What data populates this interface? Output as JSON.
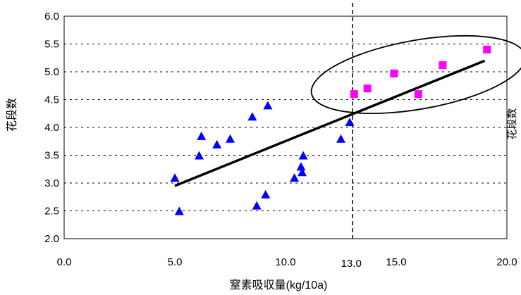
{
  "chart_data": {
    "type": "scatter",
    "title": "",
    "xlabel": "窒素吸収量(kg/10a)",
    "ylabel": "花段数",
    "right_label": "花段数",
    "xlim": [
      0,
      20
    ],
    "ylim": [
      2.0,
      6.0
    ],
    "x_ticks": [
      {
        "value": 0,
        "label": "0.0"
      },
      {
        "value": 5,
        "label": "5.0"
      },
      {
        "value": 10,
        "label": "10.0"
      },
      {
        "value": 15,
        "label": "15.0"
      },
      {
        "value": 20,
        "label": "20.0"
      }
    ],
    "y_ticks": [
      {
        "value": 2.0,
        "label": "2.0"
      },
      {
        "value": 2.5,
        "label": "2.5"
      },
      {
        "value": 3.0,
        "label": "3.0"
      },
      {
        "value": 3.5,
        "label": "3.5"
      },
      {
        "value": 4.0,
        "label": "4.0"
      },
      {
        "value": 4.5,
        "label": "4.5"
      },
      {
        "value": 5.0,
        "label": "5.0"
      },
      {
        "value": 5.5,
        "label": "5.5"
      },
      {
        "value": 6.0,
        "label": "6.0"
      }
    ],
    "grid": "horizontal-dashed",
    "series": [
      {
        "marker": "triangle",
        "color": "#0000ff",
        "points": [
          [
            5.0,
            3.1
          ],
          [
            5.2,
            2.5
          ],
          [
            6.1,
            3.5
          ],
          [
            6.2,
            3.85
          ],
          [
            6.9,
            3.7
          ],
          [
            7.5,
            3.8
          ],
          [
            8.5,
            4.2
          ],
          [
            8.7,
            2.6
          ],
          [
            9.1,
            2.8
          ],
          [
            9.2,
            4.4
          ],
          [
            10.4,
            3.1
          ],
          [
            10.7,
            3.3
          ],
          [
            10.75,
            3.2
          ],
          [
            10.8,
            3.5
          ],
          [
            12.5,
            3.8
          ],
          [
            12.9,
            4.1
          ]
        ]
      },
      {
        "marker": "square",
        "color": "#ff00ff",
        "points": [
          [
            13.1,
            4.6
          ],
          [
            13.7,
            4.7
          ],
          [
            14.9,
            4.97
          ],
          [
            16.0,
            4.6
          ],
          [
            17.1,
            5.12
          ],
          [
            19.1,
            5.4
          ]
        ]
      }
    ],
    "trendline": {
      "from": [
        5.0,
        2.95
      ],
      "to": [
        19.0,
        5.2
      ]
    },
    "vline": {
      "x": 13.0,
      "label": "13.0"
    },
    "ellipse": {
      "cx": 16.0,
      "cy": 4.95,
      "rx": 4.9,
      "ry": 0.62,
      "rotate_deg": -10
    }
  }
}
